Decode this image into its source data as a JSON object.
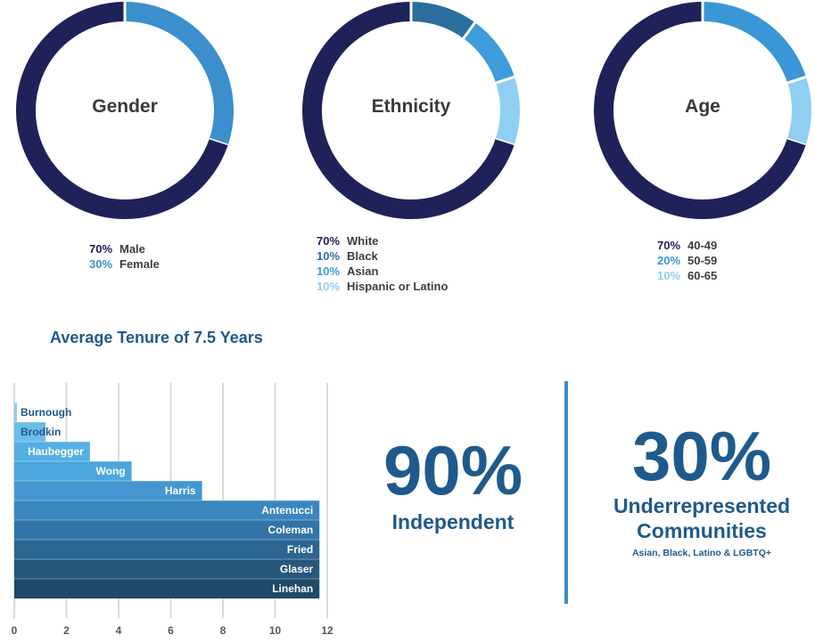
{
  "chart_data": [
    {
      "type": "pie",
      "title": "Gender",
      "slices": [
        {
          "pct_label": "70%",
          "label": "Male",
          "value": 70,
          "color": "#1f2258"
        },
        {
          "pct_label": "30%",
          "label": "Female",
          "value": 30,
          "color": "#3a8fcc"
        }
      ]
    },
    {
      "type": "pie",
      "title": "Ethnicity",
      "slices": [
        {
          "pct_label": "70%",
          "label": "White",
          "value": 70,
          "color": "#1f2258"
        },
        {
          "pct_label": "10%",
          "label": "Black",
          "value": 10,
          "color": "#2b6f9e"
        },
        {
          "pct_label": "10%",
          "label": "Asian",
          "value": 10,
          "color": "#3d9cd9"
        },
        {
          "pct_label": "10%",
          "label": "Hispanic or Latino",
          "value": 10,
          "color": "#8fd0f2"
        }
      ]
    },
    {
      "type": "pie",
      "title": "Age",
      "slices": [
        {
          "pct_label": "70%",
          "label": "40-49",
          "value": 70,
          "color": "#1f2258"
        },
        {
          "pct_label": "20%",
          "label": "50-59",
          "value": 20,
          "color": "#3a97d6"
        },
        {
          "pct_label": "10%",
          "label": "60-65",
          "value": 10,
          "color": "#8fd0f2"
        }
      ]
    },
    {
      "type": "bar",
      "orientation": "horizontal",
      "title": "Average Tenure of 7.5 Years",
      "categories": [
        "Burnough",
        "Brodkin",
        "Haubegger",
        "Wong",
        "Harris",
        "Antenucci",
        "Coleman",
        "Fried",
        "Glaser",
        "Linehan"
      ],
      "values": [
        0.1,
        1.2,
        2.9,
        4.5,
        7.2,
        11.7,
        11.7,
        11.7,
        11.7,
        11.7
      ],
      "colors": [
        "#8fd0f2",
        "#6bbde9",
        "#55b0e3",
        "#4aa6dc",
        "#4497d1",
        "#3a86bf",
        "#3273a8",
        "#2b6591",
        "#26577d",
        "#1f4a6a"
      ],
      "xlim": [
        0,
        12
      ],
      "xticks": [
        0,
        2,
        4,
        6,
        8,
        10,
        12
      ]
    }
  ],
  "stats": {
    "independent": {
      "value": "90%",
      "label": "Independent"
    },
    "underrepresented": {
      "value": "30%",
      "label_line1": "Underrepresented",
      "label_line2": "Communities",
      "note": "Asian, Black, Latino & LGBTQ+"
    }
  }
}
